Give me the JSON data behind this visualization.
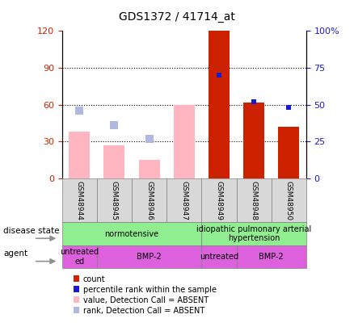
{
  "title": "GDS1372 / 41714_at",
  "samples": [
    "GSM48944",
    "GSM48945",
    "GSM48946",
    "GSM48947",
    "GSM48949",
    "GSM48948",
    "GSM48950"
  ],
  "count_values": [
    null,
    null,
    null,
    null,
    120,
    62,
    42
  ],
  "value_absent": [
    38,
    27,
    15,
    60,
    null,
    null,
    null
  ],
  "rank_absent": [
    null,
    null,
    null,
    null,
    null,
    null,
    null
  ],
  "rank_absent_left": [
    55,
    43,
    32,
    null,
    null,
    null,
    null
  ],
  "percentile_rank": [
    null,
    null,
    null,
    null,
    70,
    52,
    48
  ],
  "ylim_left": [
    0,
    120
  ],
  "ylim_right": [
    0,
    100
  ],
  "yticks_left": [
    0,
    30,
    60,
    90,
    120
  ],
  "yticks_right": [
    0,
    25,
    50,
    75,
    100
  ],
  "ytick_labels_left": [
    "0",
    "30",
    "60",
    "90",
    "120"
  ],
  "ytick_labels_right": [
    "0",
    "25",
    "50",
    "75",
    "100%"
  ],
  "bar_width": 0.6,
  "count_color_dark": "#CC2200",
  "count_color_light": "#FFB6C1",
  "rank_color_light": "#B0B8E0",
  "percentile_color": "#1A1ACD",
  "ds_groups": [
    {
      "label": "normotensive",
      "cols": [
        0,
        1,
        2,
        3
      ],
      "color": "#90EE90"
    },
    {
      "label": "idiopathic pulmonary arterial\nhypertension",
      "cols": [
        4,
        5,
        6
      ],
      "color": "#90EE90"
    }
  ],
  "ag_groups": [
    {
      "label": "untreated\ned",
      "cols": [
        0
      ],
      "color": "#DD60DD"
    },
    {
      "label": "BMP-2",
      "cols": [
        1,
        2,
        3
      ],
      "color": "#DD60DD"
    },
    {
      "label": "untreated",
      "cols": [
        4
      ],
      "color": "#DD60DD"
    },
    {
      "label": "BMP-2",
      "cols": [
        5,
        6
      ],
      "color": "#DD60DD"
    }
  ],
  "legend_items": [
    {
      "color": "#CC2200",
      "label": "count"
    },
    {
      "color": "#1A1ACD",
      "label": "percentile rank within the sample"
    },
    {
      "color": "#FFB6C1",
      "label": "value, Detection Call = ABSENT"
    },
    {
      "color": "#B0B8E0",
      "label": "rank, Detection Call = ABSENT"
    }
  ]
}
